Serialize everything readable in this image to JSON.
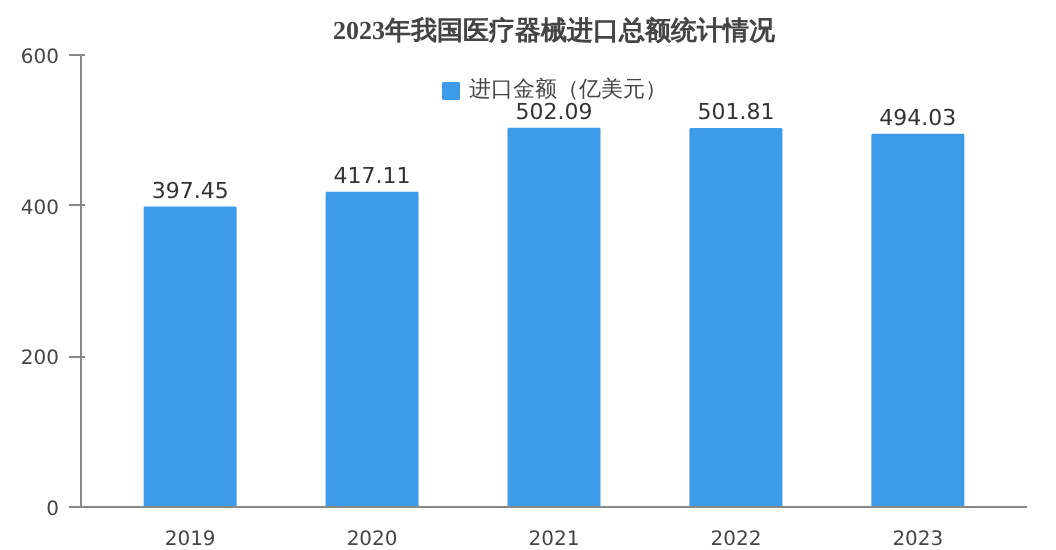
{
  "chart_data": {
    "type": "bar",
    "title": "2023年我国医疗器械进口总额统计情况",
    "categories": [
      "2019",
      "2020",
      "2021",
      "2022",
      "2023"
    ],
    "series": [
      {
        "name": "进口金额（亿美元）",
        "color": "#3d9be9",
        "values": [
          397.45,
          417.11,
          502.09,
          501.81,
          494.03
        ]
      }
    ],
    "ylim": [
      0,
      600
    ],
    "yticks": [
      0,
      200,
      400,
      600
    ],
    "grid": false,
    "legend": "top",
    "data_labels": true
  }
}
